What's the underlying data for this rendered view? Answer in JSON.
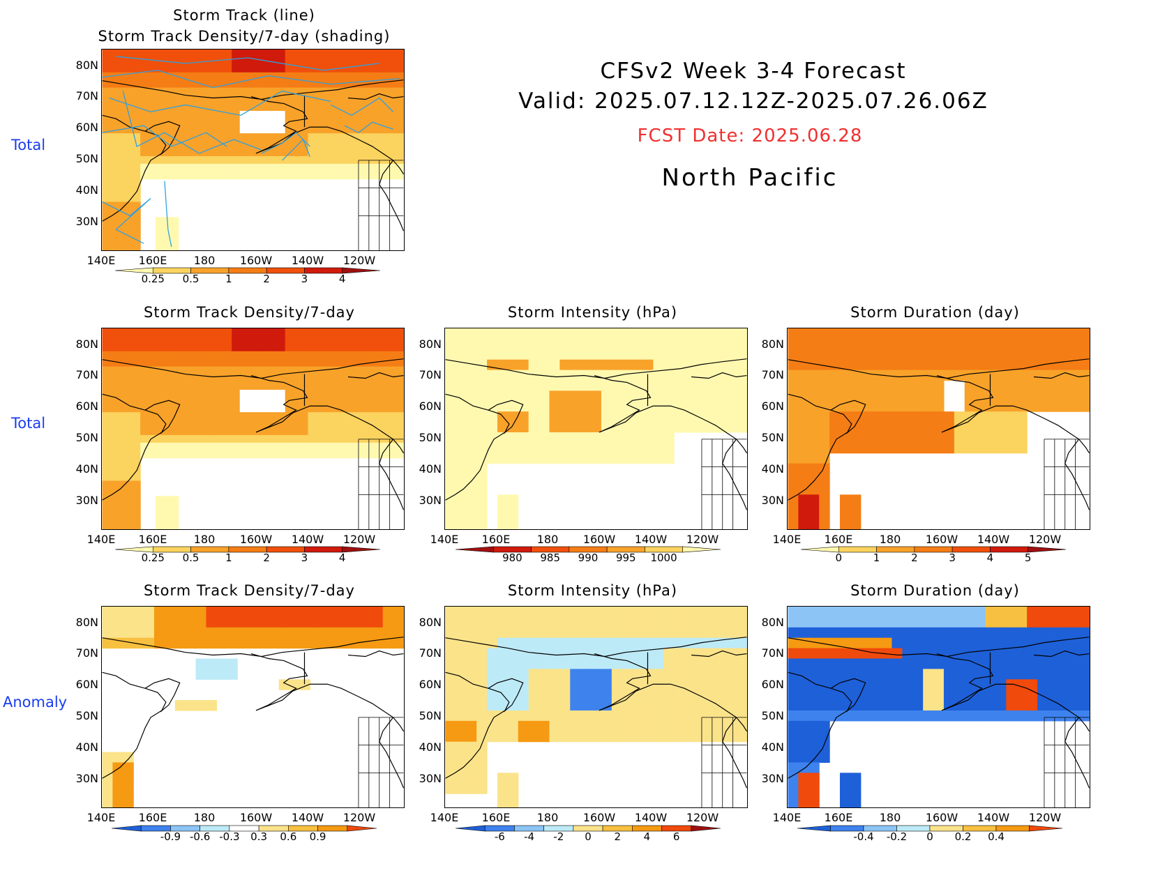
{
  "header": {
    "line1": "CFSv2  Week  3-4  Forecast",
    "line2": "Valid:  2025.07.12.12Z-2025.07.26.06Z",
    "fcst": "FCST Date: 2025.06.28",
    "region": "North  Pacific"
  },
  "row_labels": {
    "total1": "Total",
    "total2": "Total",
    "anomaly": "Anomaly"
  },
  "axes": {
    "lat": [
      "80N",
      "70N",
      "60N",
      "50N",
      "40N",
      "30N"
    ],
    "lon": [
      "140E",
      "160E",
      "180",
      "160W",
      "140W",
      "120W"
    ]
  },
  "panels": {
    "track_top": {
      "title1": "Storm Track (line)",
      "title2": "Storm Track Density/7-day (shading)"
    },
    "density_total": {
      "title": "Storm Track Density/7-day"
    },
    "intensity_total": {
      "title": "Storm Intensity (hPa)"
    },
    "duration_total": {
      "title": "Storm Duration (day)"
    },
    "density_anom": {
      "title": "Storm Track Density/7-day"
    },
    "intensity_anom": {
      "title": "Storm Intensity (hPa)"
    },
    "duration_anom": {
      "title": "Storm Duration (day)"
    }
  },
  "colorbars": {
    "density": {
      "labels": [
        "0.25",
        "0.5",
        "1",
        "2",
        "3",
        "4"
      ],
      "colors": [
        "#fff9b0",
        "#fbd35f",
        "#f8a22a",
        "#f57d15",
        "#f0500b",
        "#d01a0b",
        "#a01010"
      ]
    },
    "intensity": {
      "labels": [
        "980",
        "985",
        "990",
        "995",
        "1000"
      ],
      "colors": [
        "#a01010",
        "#d01a0b",
        "#f0500b",
        "#f57d15",
        "#f8a22a",
        "#fbd35f",
        "#fff9b0"
      ]
    },
    "duration": {
      "labels": [
        "0",
        "1",
        "2",
        "3",
        "4",
        "5"
      ],
      "colors": [
        "#fff9b0",
        "#fbd35f",
        "#f8a22a",
        "#f57d15",
        "#f0500b",
        "#d01a0b",
        "#a01010"
      ]
    },
    "density_anom": {
      "labels": [
        "-0.9",
        "-0.6",
        "-0.3",
        "0.3",
        "0.6",
        "0.9"
      ],
      "colors": [
        "#1e60d8",
        "#3e82ee",
        "#8cc4f6",
        "#bdeaf7",
        "#ffffff",
        "#fbe38a",
        "#f8c040",
        "#f59a12",
        "#f04a0c"
      ]
    },
    "intensity_anom": {
      "labels": [
        "-6",
        "-4",
        "-2",
        "0",
        "2",
        "4",
        "6"
      ],
      "colors": [
        "#1e60d8",
        "#3e82ee",
        "#8cc4f6",
        "#bdeaf7",
        "#fbe38a",
        "#f8c040",
        "#f59a12",
        "#f04a0c",
        "#a01010"
      ]
    },
    "duration_anom": {
      "labels": [
        "-0.4",
        "-0.2",
        "0",
        "0.2",
        "0.4"
      ],
      "colors": [
        "#1e60d8",
        "#3e82ee",
        "#8cc4f6",
        "#bdeaf7",
        "#fbe38a",
        "#f8c040",
        "#f59a12",
        "#f04a0c"
      ]
    }
  }
}
